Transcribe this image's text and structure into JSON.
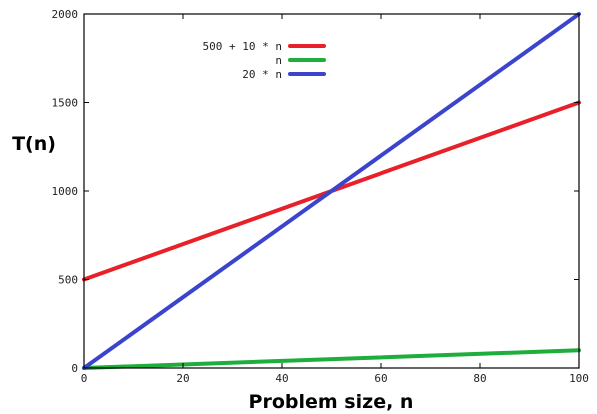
{
  "chart_data": {
    "type": "line",
    "title": "",
    "xlabel": "Problem size, n",
    "ylabel": "T(n)",
    "xlim": [
      0,
      100
    ],
    "ylim": [
      0,
      2000
    ],
    "xticks": [
      0,
      20,
      40,
      60,
      80,
      100
    ],
    "yticks": [
      0,
      500,
      1000,
      1500,
      2000
    ],
    "xtick_labels": [
      "0",
      "20",
      "40",
      "60",
      "80",
      "100"
    ],
    "ytick_labels": [
      "0",
      "500",
      "1000",
      "1500",
      "2000"
    ],
    "grid": false,
    "legend_position": "top-left",
    "series": [
      {
        "name": "500 + 10 * n",
        "color": "#e8202a",
        "x": [
          0,
          100
        ],
        "y": [
          500,
          1500
        ]
      },
      {
        "name": "n",
        "color": "#1fad3c",
        "x": [
          0,
          100
        ],
        "y": [
          0,
          100
        ]
      },
      {
        "name": "20 * n",
        "color": "#3b44cc",
        "x": [
          0,
          100
        ],
        "y": [
          0,
          2000
        ]
      }
    ]
  }
}
